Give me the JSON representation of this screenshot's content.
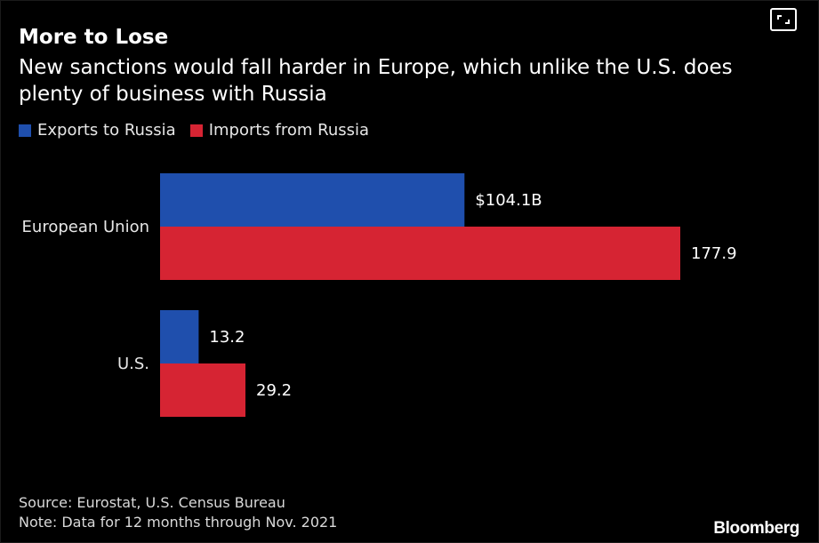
{
  "header": {
    "title": "More to Lose",
    "subtitle": "New sanctions would fall harder in Europe, which unlike the U.S. does plenty of business with Russia"
  },
  "legend": [
    {
      "label": "Exports to Russia",
      "color": "#1f4fad"
    },
    {
      "label": "Imports from Russia",
      "color": "#d62433"
    }
  ],
  "chart_data": {
    "type": "bar",
    "orientation": "horizontal",
    "categories": [
      "European Union",
      "U.S."
    ],
    "series": [
      {
        "name": "Exports to Russia",
        "color": "#1f4fad",
        "values": [
          104.1,
          13.2
        ],
        "labels": [
          "$104.1B",
          "13.2"
        ]
      },
      {
        "name": "Imports from Russia",
        "color": "#d62433",
        "values": [
          177.9,
          29.2
        ],
        "labels": [
          "177.9",
          "29.2"
        ]
      }
    ],
    "xlim": [
      0,
      177.9
    ],
    "grid": false,
    "legend_position": "top-left"
  },
  "footer": {
    "source": "Source: Eurostat, U.S. Census Bureau",
    "note": "Note: Data for 12 months through Nov. 2021",
    "brand": "Bloomberg"
  },
  "icons": {
    "expand": "expand-icon"
  }
}
